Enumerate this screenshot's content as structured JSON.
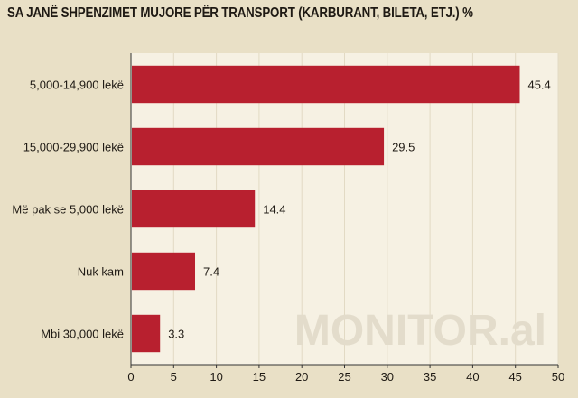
{
  "chart_data": {
    "type": "bar",
    "orientation": "horizontal",
    "title": "SA JANË SHPENZIMET MUJORE PËR TRANSPORT (KARBURANT, BILETA, ETJ.) %",
    "categories": [
      "5,000-14,900 lekë",
      "15,000-29,900 lekë",
      "Më pak se 5,000 lekë",
      "Nuk kam",
      "Mbi 30,000 lekë"
    ],
    "values": [
      45.4,
      29.5,
      14.4,
      7.4,
      3.3
    ],
    "value_labels": [
      "45.4",
      "29.5",
      "14.4",
      "7.4",
      "3.3"
    ],
    "xlim": [
      0,
      50
    ],
    "xticks": [
      0,
      5,
      10,
      15,
      20,
      25,
      30,
      35,
      40,
      45,
      50
    ],
    "xtick_labels": [
      "0",
      "5",
      "10",
      "15",
      "20",
      "25",
      "30",
      "35",
      "40",
      "45",
      "50"
    ],
    "grid": true,
    "bar_color": "#b8202f",
    "watermark": "MONITOR.al"
  },
  "colors": {
    "background": "#e9e0c6",
    "plot_background": "#f6f1e3",
    "grid": "#e2dac4",
    "text": "#1f1a14",
    "watermark": "#e3dccb"
  }
}
